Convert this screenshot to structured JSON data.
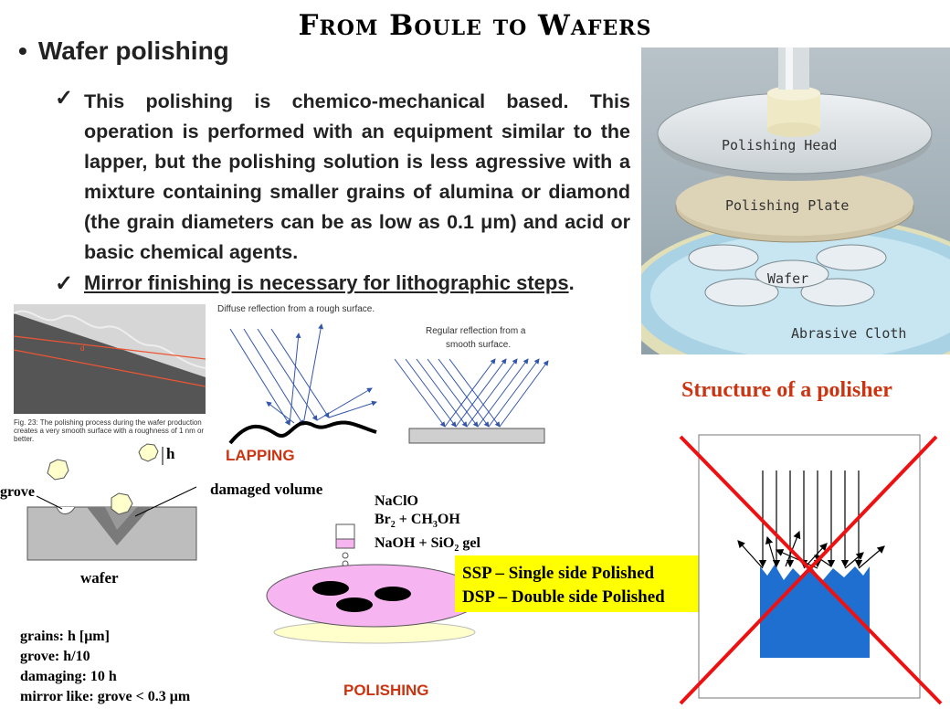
{
  "title": "From Boule to Wafers",
  "bullet": "Wafer polishing",
  "point1": "This polishing is chemico-mechanical based. This operation is performed with an equipment similar to the lapper, but the polishing solution is less agressive with a mixture containing smaller grains of alumina or diamond (the grain diameters can be as low as 0.1 μm) and acid or basic chemical agents.",
  "point2_text": "Mirror finishing is necessary for lithographic steps",
  "point2_end": ".",
  "polisher": {
    "head": "Polishing Head",
    "plate": "Polishing Plate",
    "wafer": "Wafer",
    "cloth": "Abrasive Cloth",
    "caption": "Structure of a polisher"
  },
  "fig23": {
    "letter": "d",
    "caption": "Fig. 23: The polishing process during the wafer production creates a very smooth surface with a roughness of 1 nm or better."
  },
  "reflection": {
    "diffuse": "Diffuse reflection from a rough surface.",
    "regular_1": "Regular reflection from a",
    "regular_2": "smooth surface."
  },
  "lapping": "LAPPING",
  "polishing": "POLISHING",
  "lap_diagram": {
    "h": "h",
    "grove": "grove",
    "damaged": "damaged volume",
    "wafer": "wafer"
  },
  "chem": {
    "l1": "NaClO",
    "l2_a": "Br",
    "l2_b": "2",
    "l2_c": " + CH",
    "l2_d": "3",
    "l2_e": "OH",
    "l3_a": "NaOH + SiO",
    "l3_b": "2",
    "l3_c": " gel"
  },
  "ssp": "SSP – Single side Polished",
  "dsp": "DSP – Double side Polished",
  "notes": [
    "grains: h [μm]",
    "grove:  h/10",
    "damaging: 10 h",
    "mirror like:  grove < 0.3 μm"
  ],
  "colors": {
    "red": "#cc3311",
    "yellow": "#ffff00",
    "pink": "#f6b4f0",
    "blue": "#1f6fd0",
    "cross": "#ee1111"
  }
}
